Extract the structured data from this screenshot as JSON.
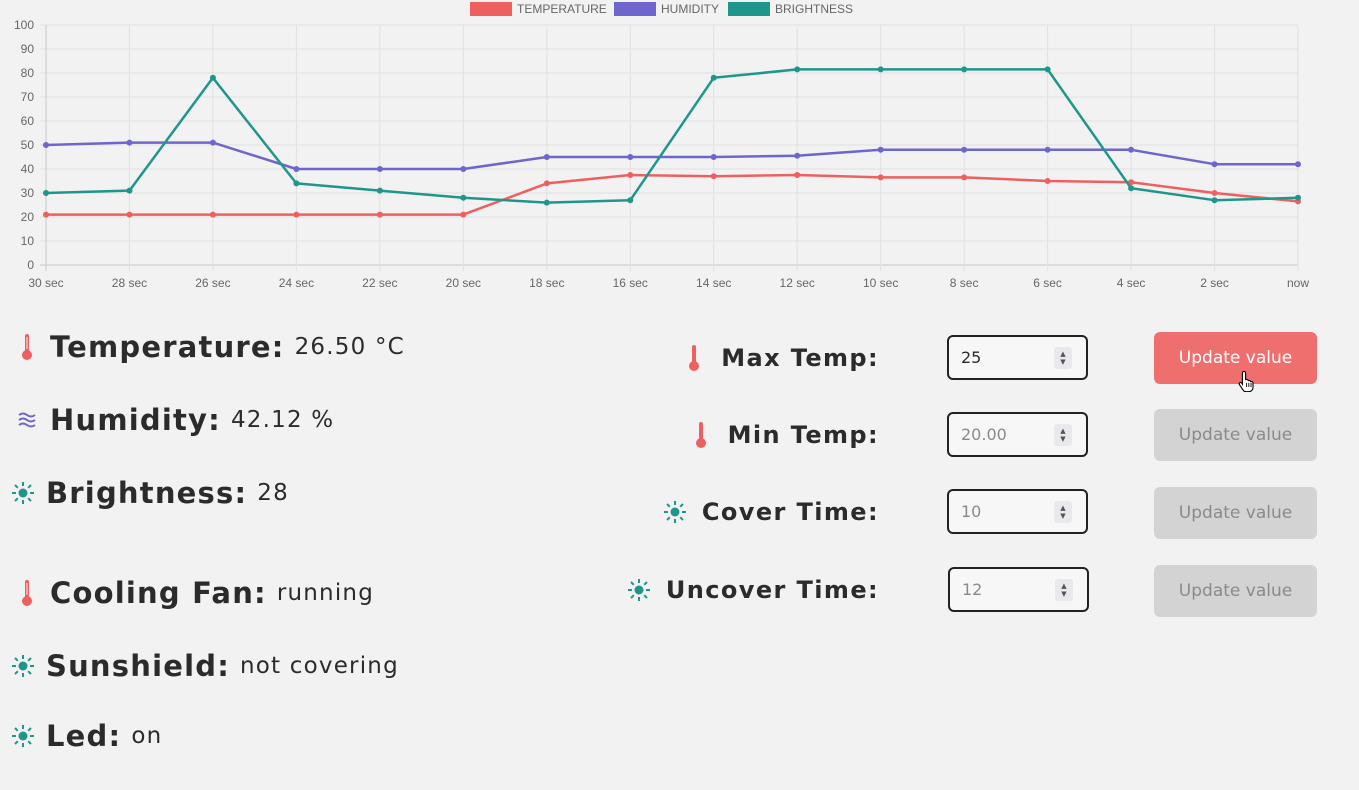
{
  "chart_data": {
    "type": "line",
    "categories": [
      "30 sec",
      "28 sec",
      "26 sec",
      "24 sec",
      "22 sec",
      "20 sec",
      "18 sec",
      "16 sec",
      "14 sec",
      "12 sec",
      "10 sec",
      "8 sec",
      "6 sec",
      "4 sec",
      "2 sec",
      "now"
    ],
    "ylim": [
      0,
      100
    ],
    "yticks": [
      "0",
      "10",
      "20",
      "30",
      "40",
      "50",
      "60",
      "70",
      "80",
      "90",
      "100"
    ],
    "grid": true,
    "legend_position": "top",
    "series": [
      {
        "name": "TEMPERATURE",
        "color": "#ee6060",
        "values": [
          21,
          21,
          21,
          21,
          21,
          21,
          34,
          37.5,
          37,
          37.5,
          36.5,
          36.5,
          35,
          34.5,
          30,
          26.5
        ]
      },
      {
        "name": "HUMIDITY",
        "color": "#6e66cc",
        "values": [
          50,
          51,
          51,
          40,
          40,
          40,
          45,
          45,
          45,
          45.5,
          48,
          48,
          48,
          48,
          42,
          42
        ]
      },
      {
        "name": "BRIGHTNESS",
        "color": "#1f968b",
        "values": [
          30,
          31,
          78,
          34,
          31,
          28,
          26,
          27,
          78,
          81.5,
          81.5,
          81.5,
          81.5,
          32,
          27,
          28
        ]
      }
    ]
  },
  "readings": {
    "temperature": {
      "label": "Temperature:",
      "value": "26.50 °C",
      "icon": "thermometer-icon"
    },
    "humidity": {
      "label": "Humidity:",
      "value": "42.12 %",
      "icon": "humidity-icon"
    },
    "brightness": {
      "label": "Brightness:",
      "value": "28",
      "icon": "sun-icon"
    },
    "cooling_fan": {
      "label": "Cooling Fan:",
      "value": "running",
      "icon": "thermometer-icon"
    },
    "sunshield": {
      "label": "Sunshield:",
      "value": "not covering",
      "icon": "sun-icon"
    },
    "led": {
      "label": "Led:",
      "value": "on",
      "icon": "sun-icon"
    }
  },
  "settings": {
    "max_temp": {
      "label": "Max Temp:",
      "value": "25",
      "button": "Update value"
    },
    "min_temp": {
      "label": "Min Temp:",
      "placeholder": "20.00",
      "button": "Update value"
    },
    "cover_time": {
      "label": "Cover Time:",
      "placeholder": "10",
      "button": "Update value"
    },
    "uncover_time": {
      "label": "Uncover Time:",
      "placeholder": "12",
      "button": "Update value"
    }
  },
  "colors": {
    "temperature": "#ee6060",
    "humidity": "#6e66cc",
    "brightness": "#1f968b",
    "button_active": "#ef6f6f",
    "button_disabled": "#d3d3d3"
  }
}
